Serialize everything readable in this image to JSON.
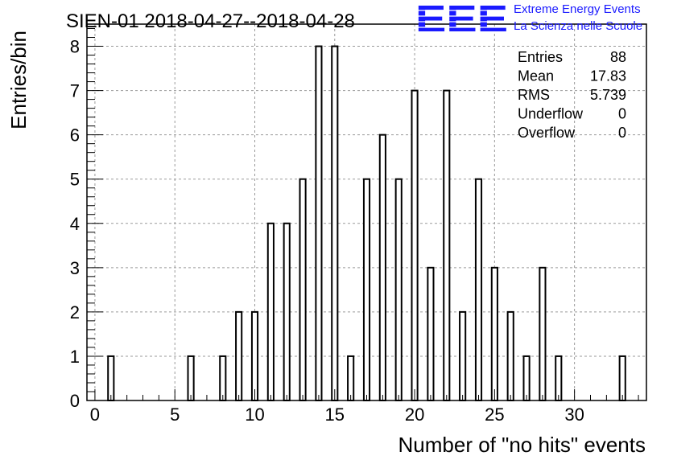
{
  "title": "SIEN-01 2018-04-27--2018-04-28",
  "logo": {
    "letters": "EEE",
    "line1": "Extreme Energy Events",
    "line2": "La Scienza nelle Scuole",
    "color": "#1a1aff"
  },
  "stats": [
    {
      "label": "Entries",
      "value": "88"
    },
    {
      "label": "Mean",
      "value": "17.83"
    },
    {
      "label": "RMS",
      "value": "5.739"
    },
    {
      "label": "Underflow",
      "value": "0"
    },
    {
      "label": "Overflow",
      "value": "0"
    }
  ],
  "chart_data": {
    "type": "bar",
    "title": "SIEN-01 2018-04-27--2018-04-28",
    "xlabel": "Number of \"no hits\" events",
    "ylabel": "Entries/bin",
    "xlim": [
      -0.5,
      34.5
    ],
    "ylim": [
      0,
      8.5
    ],
    "x_ticks": [
      0,
      5,
      10,
      15,
      20,
      25,
      30
    ],
    "y_ticks": [
      0,
      1,
      2,
      3,
      4,
      5,
      6,
      7,
      8
    ],
    "grid": true,
    "bin_width": 1,
    "x": [
      1,
      6,
      8,
      9,
      10,
      11,
      12,
      13,
      14,
      15,
      16,
      17,
      18,
      19,
      20,
      21,
      22,
      23,
      24,
      25,
      26,
      27,
      28,
      29,
      33
    ],
    "values": [
      1,
      1,
      1,
      2,
      2,
      4,
      4,
      5,
      8,
      8,
      1,
      5,
      6,
      5,
      7,
      3,
      7,
      2,
      5,
      3,
      2,
      1,
      3,
      1,
      1
    ]
  }
}
